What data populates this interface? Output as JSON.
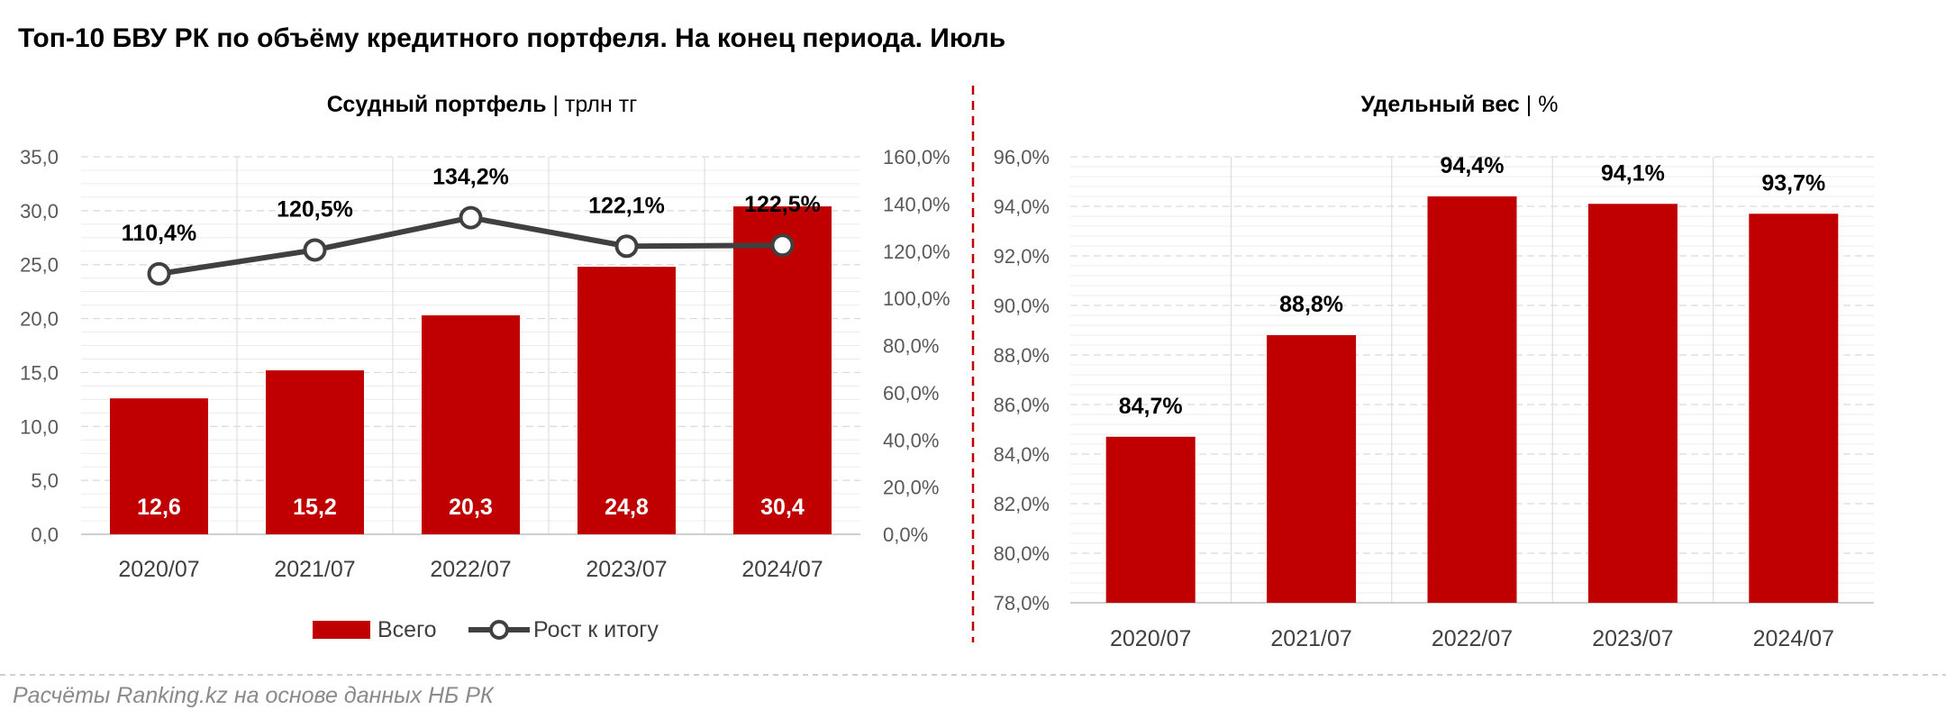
{
  "title": "Топ-10 БВУ РК по объёму кредитного портфеля. На конец периода. Июль",
  "footer": "Расчёты Ranking.kz на основе данных НБ РК",
  "colors": {
    "bar": "#C00000",
    "line": "#404040",
    "grid": "#D9D9D9",
    "divider": "#C00000"
  },
  "chart_data": [
    {
      "type": "bar",
      "title": "Ссудный портфель",
      "title_unit": "трлн тг",
      "categories": [
        "2020/07",
        "2021/07",
        "2022/07",
        "2023/07",
        "2024/07"
      ],
      "series": [
        {
          "name": "Всего",
          "type": "bar",
          "axis": "left",
          "values": [
            12.6,
            15.2,
            20.3,
            24.8,
            30.4
          ],
          "labels": [
            "12,6",
            "15,2",
            "20,3",
            "24,8",
            "30,4"
          ]
        },
        {
          "name": "Рост к итогу",
          "type": "line",
          "axis": "right",
          "values": [
            110.4,
            120.5,
            134.2,
            122.1,
            122.5
          ],
          "labels": [
            "110,4%",
            "120,5%",
            "134,2%",
            "122,1%",
            "122,5%"
          ]
        }
      ],
      "ylim": [
        0,
        35
      ],
      "yticks": [
        "0,0",
        "5,0",
        "10,0",
        "15,0",
        "20,0",
        "25,0",
        "30,0",
        "35,0"
      ],
      "y2lim": [
        0,
        160
      ],
      "y2ticks": [
        "0,0%",
        "20,0%",
        "40,0%",
        "60,0%",
        "80,0%",
        "100,0%",
        "120,0%",
        "140,0%",
        "160,0%"
      ],
      "legend": "bottom",
      "grid": true
    },
    {
      "type": "bar",
      "title": "Удельный вес",
      "title_unit": "%",
      "categories": [
        "2020/07",
        "2021/07",
        "2022/07",
        "2023/07",
        "2024/07"
      ],
      "series": [
        {
          "name": "Удельный вес",
          "values": [
            84.7,
            88.8,
            94.4,
            94.1,
            93.7
          ],
          "labels": [
            "84,7%",
            "88,8%",
            "94,4%",
            "94,1%",
            "93,7%"
          ]
        }
      ],
      "ylim": [
        78,
        96
      ],
      "yticks": [
        "78,0%",
        "80,0%",
        "82,0%",
        "84,0%",
        "86,0%",
        "88,0%",
        "90,0%",
        "92,0%",
        "94,0%",
        "96,0%"
      ],
      "grid": true
    }
  ]
}
